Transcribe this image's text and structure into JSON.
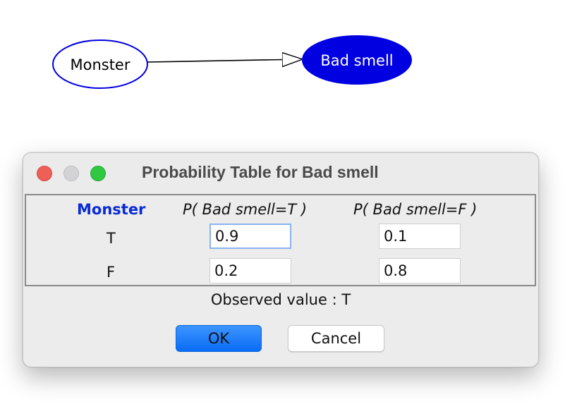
{
  "graph": {
    "nodes": [
      {
        "id": "monster",
        "label": "Monster",
        "style": "outline",
        "color": "#0000e0"
      },
      {
        "id": "bad-smell",
        "label": "Bad smell",
        "style": "filled",
        "color": "#0000e0"
      }
    ],
    "edges": [
      {
        "from": "monster",
        "to": "bad-smell"
      }
    ]
  },
  "dialog": {
    "title": "Probability Table for Bad smell",
    "table": {
      "parent_header": "Monster",
      "col_true": "P( Bad smell=T )",
      "col_false": "P( Bad smell=F )",
      "rows": [
        {
          "label": "T",
          "p_true": "0.9",
          "p_false": "0.1"
        },
        {
          "label": "F",
          "p_true": "0.2",
          "p_false": "0.8"
        }
      ]
    },
    "observed_text": "Observed value : T",
    "ok_label": "OK",
    "cancel_label": "Cancel"
  },
  "colors": {
    "node_blue": "#0000e0",
    "header_blue": "#0a2bd6",
    "ok_blue": "#0a6cf5",
    "close": "#ee5f57",
    "minimize": "#d3d2d5",
    "zoom": "#2fc840"
  }
}
